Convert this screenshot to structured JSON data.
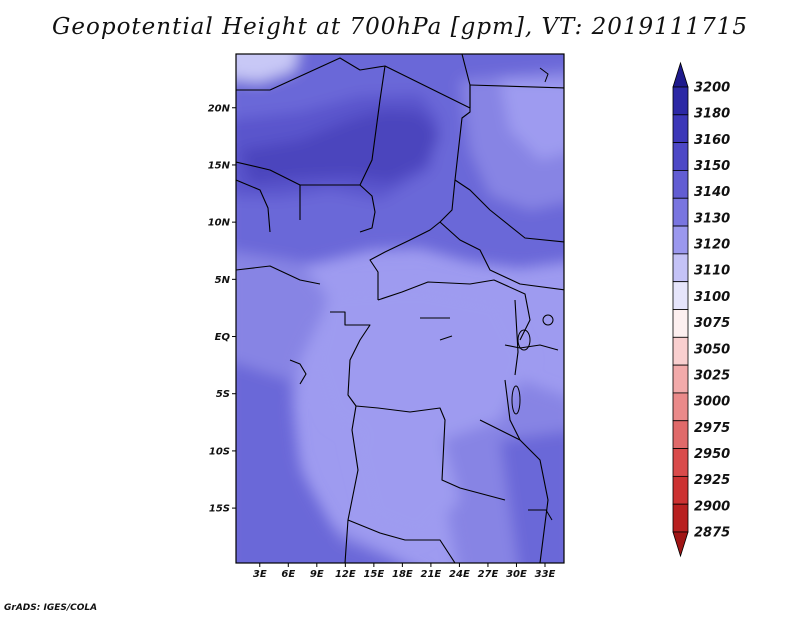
{
  "title": "Geopotential Height at 700hPa [gpm], VT: 2019111715",
  "credit": "GrADS: IGES/COLA",
  "map": {
    "lat_labels": [
      "20N",
      "15N",
      "10N",
      "5N",
      "EQ",
      "5S",
      "10S",
      "15S"
    ],
    "lat_values": [
      20,
      15,
      10,
      5,
      0,
      -5,
      -10,
      -15
    ],
    "lon_labels": [
      "3E",
      "6E",
      "9E",
      "12E",
      "15E",
      "18E",
      "21E",
      "24E",
      "27E",
      "30E",
      "33E"
    ],
    "lon_values": [
      3,
      6,
      9,
      12,
      15,
      18,
      21,
      24,
      27,
      30,
      33
    ],
    "lon_range": [
      0.5,
      35
    ],
    "lat_range": [
      -19.8,
      24.7
    ],
    "field_colors": {
      "c3110": "#c8c8f6",
      "c3120": "#9e9bf0",
      "c3130": "#8784e4",
      "c3140": "#6b67d8",
      "c3150": "#5a55cc",
      "c3160": "#4b45bd"
    }
  },
  "colorbar": {
    "levels": [
      "3200",
      "3180",
      "3160",
      "3150",
      "3140",
      "3130",
      "3120",
      "3110",
      "3100",
      "3075",
      "3050",
      "3025",
      "3000",
      "2975",
      "2950",
      "2925",
      "2900",
      "2875"
    ],
    "colors": [
      "#1e1a8c",
      "#2c28a5",
      "#3c37b8",
      "#4d48c6",
      "#625dd3",
      "#7975e0",
      "#9b98ee",
      "#c4c2f6",
      "#e6e5fb",
      "#fdf0f0",
      "#f9cfcf",
      "#f2aaaa",
      "#ea8a8a",
      "#e06a6a",
      "#d94b4b",
      "#cc3232",
      "#b82020",
      "#a01515"
    ]
  }
}
